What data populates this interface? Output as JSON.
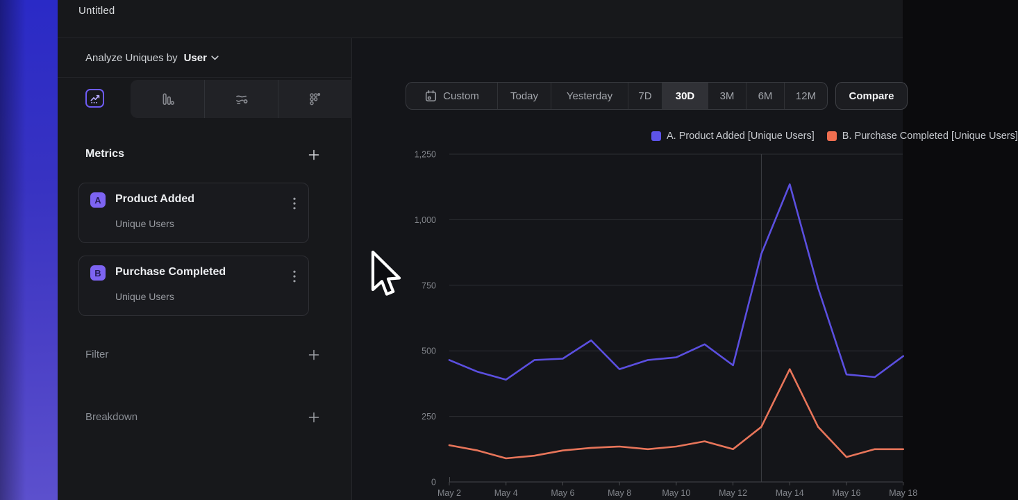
{
  "topbar": {
    "title": "Untitled"
  },
  "sidebar": {
    "analyze_label": "Analyze Uniques by",
    "analyze_value": "User",
    "view_tabs": [
      {
        "icon": "line-chart",
        "selected": true
      },
      {
        "icon": "bar-chart",
        "selected": false
      },
      {
        "icon": "flow",
        "selected": false
      },
      {
        "icon": "grid-dots",
        "selected": false
      }
    ],
    "metrics_label": "Metrics",
    "metrics": [
      {
        "badge": "A",
        "title": "Product Added",
        "subtitle": "Unique Users"
      },
      {
        "badge": "B",
        "title": "Purchase Completed",
        "subtitle": "Unique Users"
      }
    ],
    "filter_label": "Filter",
    "breakdown_label": "Breakdown"
  },
  "timebar": {
    "items": [
      "Custom",
      "Today",
      "Yesterday",
      "7D",
      "30D",
      "3M",
      "6M",
      "12M"
    ],
    "selected": "30D",
    "compare_label": "Compare"
  },
  "legend": [
    {
      "label": "A. Product Added [Unique Users]",
      "color": "#5d53e8"
    },
    {
      "label": "B. Purchase Completed [Unique Users]",
      "color": "#ee6e50"
    }
  ],
  "chart_data": {
    "type": "line",
    "x": [
      "May 2",
      "May 3",
      "May 4",
      "May 5",
      "May 6",
      "May 7",
      "May 8",
      "May 9",
      "May 10",
      "May 11",
      "May 12",
      "May 13",
      "May 14",
      "May 15",
      "May 16",
      "May 17",
      "May 18"
    ],
    "x_tick_every": 2,
    "series": [
      {
        "name": "A. Product Added [Unique Users]",
        "color": "#5b4fe0",
        "values": [
          465,
          420,
          390,
          465,
          470,
          540,
          430,
          465,
          475,
          525,
          445,
          870,
          1135,
          740,
          410,
          400,
          480
        ]
      },
      {
        "name": "B. Purchase Completed [Unique Users]",
        "color": "#e8755a",
        "values": [
          140,
          120,
          90,
          100,
          120,
          130,
          135,
          125,
          135,
          155,
          125,
          210,
          430,
          210,
          95,
          125,
          125
        ]
      }
    ],
    "ylim": [
      0,
      1250
    ],
    "yticks": [
      0,
      250,
      500,
      750,
      1000,
      1250
    ],
    "vertical_marker_x": "May 13",
    "grid": true,
    "legend_position": "top-right"
  },
  "colors": {
    "accent": "#6e5cf6",
    "series_a": "#5b4fe0",
    "series_b": "#e8755a"
  }
}
